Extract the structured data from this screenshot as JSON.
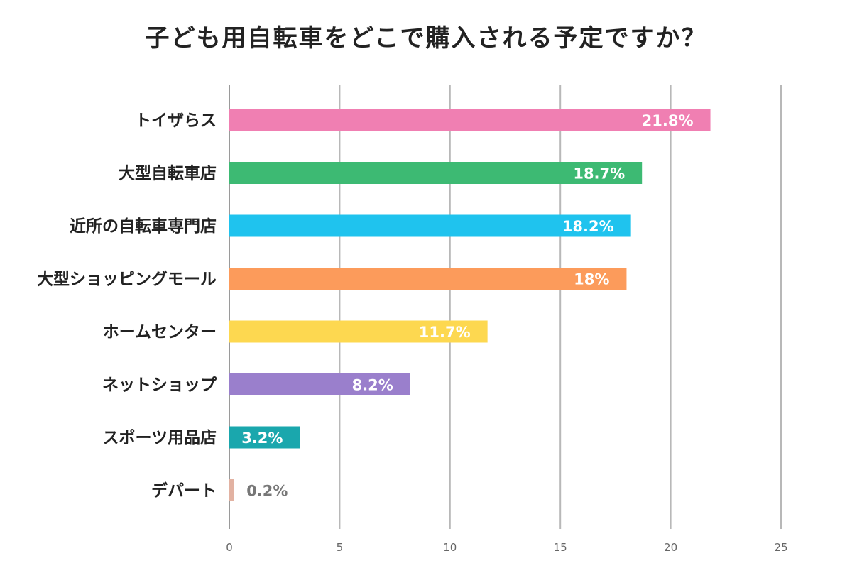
{
  "chart_data": {
    "type": "bar",
    "orientation": "horizontal",
    "title": "子ども用自転車をどこで購入される予定ですか？",
    "xlabel": "",
    "ylabel": "",
    "xlim": [
      0,
      25
    ],
    "xticks": [
      0,
      5,
      10,
      15,
      20,
      25
    ],
    "grid": "vertical",
    "legend": "none",
    "categories": [
      "トイザらス",
      "大型自転車店",
      "近所の自転車専門店",
      "大型ショッピングモール",
      "ホームセンター",
      "ネットショップ",
      "スポーツ用品店",
      "デパート"
    ],
    "values": [
      21.8,
      18.7,
      18.2,
      18,
      11.7,
      8.2,
      3.2,
      0.2
    ],
    "value_labels": [
      "21.8%",
      "18.7%",
      "18.2%",
      "18%",
      "11.7%",
      "8.2%",
      "3.2%",
      "0.2%"
    ],
    "colors": [
      "#f07fb2",
      "#3dba73",
      "#1fc3ee",
      "#fc9b5b",
      "#fdd850",
      "#9a7fcc",
      "#1aa7ad",
      "#e2b2a2"
    ]
  }
}
